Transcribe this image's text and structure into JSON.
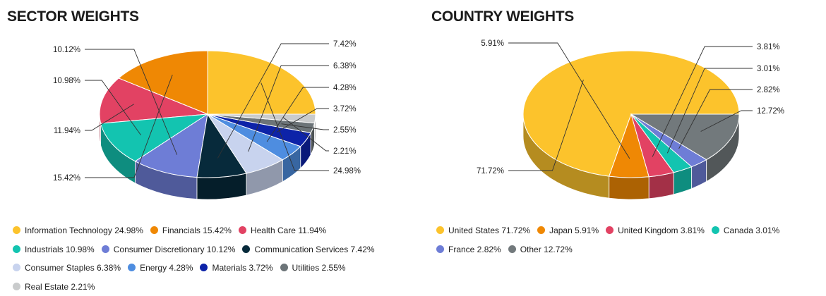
{
  "chart_data": [
    {
      "id": "sector",
      "type": "pie",
      "title": "SECTOR WEIGHTS",
      "slices": [
        {
          "name": "Information Technology",
          "value": 24.98,
          "label": "24.98%",
          "color": "#fcc32c"
        },
        {
          "name": "Financials",
          "value": 15.42,
          "label": "15.42%",
          "color": "#ef8804"
        },
        {
          "name": "Health Care",
          "value": 11.94,
          "label": "11.94%",
          "color": "#e24263"
        },
        {
          "name": "Industrials",
          "value": 10.98,
          "label": "10.98%",
          "color": "#13c4b0"
        },
        {
          "name": "Consumer Discretionary",
          "value": 10.12,
          "label": "10.12%",
          "color": "#6e7dd6"
        },
        {
          "name": "Communication Services",
          "value": 7.42,
          "label": "7.42%",
          "color": "#072a3b"
        },
        {
          "name": "Consumer Staples",
          "value": 6.38,
          "label": "6.38%",
          "color": "#c8d3ee"
        },
        {
          "name": "Energy",
          "value": 4.28,
          "label": "4.28%",
          "color": "#4e8de0"
        },
        {
          "name": "Materials",
          "value": 3.72,
          "label": "3.72%",
          "color": "#0d23a8"
        },
        {
          "name": "Utilities",
          "value": 2.55,
          "label": "2.55%",
          "color": "#6c7478"
        },
        {
          "name": "Real Estate",
          "value": 2.21,
          "label": "2.21%",
          "color": "#c9cbcc"
        }
      ],
      "legend": [
        [
          "Information Technology 24.98%",
          "Financials 15.42%",
          "Health Care 11.94%"
        ],
        [
          "Industrials 10.98%",
          "Consumer Discretionary 10.12%",
          "Communication Services 7.42%"
        ],
        [
          "Consumer Staples 6.38%",
          "Energy 4.28%",
          "Materials 3.72%",
          "Utilities 2.55%"
        ],
        [
          "Real Estate 2.21%"
        ]
      ]
    },
    {
      "id": "country",
      "type": "pie",
      "title": "COUNTRY WEIGHTS",
      "slices": [
        {
          "name": "United States",
          "value": 71.72,
          "label": "71.72%",
          "color": "#fcc32c"
        },
        {
          "name": "Japan",
          "value": 5.91,
          "label": "5.91%",
          "color": "#ef8804"
        },
        {
          "name": "United Kingdom",
          "value": 3.81,
          "label": "3.81%",
          "color": "#e24263"
        },
        {
          "name": "Canada",
          "value": 3.01,
          "label": "3.01%",
          "color": "#13c4b0"
        },
        {
          "name": "France",
          "value": 2.82,
          "label": "2.82%",
          "color": "#6e7dd6"
        },
        {
          "name": "Other",
          "value": 12.72,
          "label": "12.72%",
          "color": "#72797c"
        }
      ],
      "legend": [
        [
          "United States 71.72%",
          "Japan 5.91%",
          "United Kingdom 3.81%",
          "Canada 3.01%"
        ],
        [
          "France 2.82%",
          "Other 12.72%"
        ]
      ]
    }
  ]
}
